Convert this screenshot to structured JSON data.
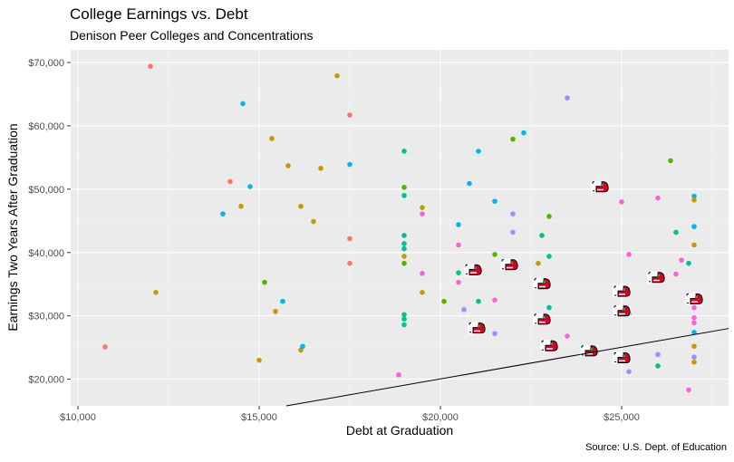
{
  "chart_data": {
    "type": "scatter",
    "title": "College Earnings vs. Debt",
    "subtitle": "Denison Peer Colleges and Concentrations",
    "caption": "Source: U.S. Dept. of Education",
    "xlabel": "Debt at Graduation",
    "ylabel": "Earnings Two Years After Graduation",
    "xlim": [
      9800,
      27950
    ],
    "ylim": [
      15800,
      72000
    ],
    "x_ticks": [
      10000,
      15000,
      20000,
      25000
    ],
    "x_tick_labels": [
      "$10,000",
      "$15,000",
      "$20,000",
      "$25,000"
    ],
    "y_ticks": [
      20000,
      30000,
      40000,
      50000,
      60000,
      70000
    ],
    "y_tick_labels": [
      "$20,000",
      "$30,000",
      "$40,000",
      "$50,000",
      "$60,000",
      "$70,000"
    ],
    "grid": true,
    "legend": "none",
    "reference_line": {
      "x1": 15750,
      "y1": 15800,
      "x2": 27950,
      "y2": 28000
    },
    "colors": {
      "panel": "#ebebeb",
      "grid_major": "#ffffff",
      "grid_minor": "#f4f4f4",
      "palette": [
        "#f8766d",
        "#c49a00",
        "#53b400",
        "#00c094",
        "#00b6eb",
        "#a58aff",
        "#fb61d7"
      ],
      "marker_red": "#d4002a"
    },
    "points": [
      {
        "x": 10750,
        "y": 25100,
        "c": 0
      },
      {
        "x": 12000,
        "y": 69400,
        "c": 0
      },
      {
        "x": 12150,
        "y": 33700,
        "c": 1
      },
      {
        "x": 14000,
        "y": 46100,
        "c": 4
      },
      {
        "x": 14200,
        "y": 51200,
        "c": 0
      },
      {
        "x": 14500,
        "y": 47300,
        "c": 1
      },
      {
        "x": 14550,
        "y": 63500,
        "c": 4
      },
      {
        "x": 14750,
        "y": 50400,
        "c": 4
      },
      {
        "x": 15000,
        "y": 23000,
        "c": 1
      },
      {
        "x": 15150,
        "y": 35300,
        "c": 2
      },
      {
        "x": 15350,
        "y": 58000,
        "c": 1
      },
      {
        "x": 15450,
        "y": 30700,
        "c": 1
      },
      {
        "x": 15650,
        "y": 32300,
        "c": 4
      },
      {
        "x": 15800,
        "y": 53700,
        "c": 1
      },
      {
        "x": 16150,
        "y": 24600,
        "c": 1
      },
      {
        "x": 16200,
        "y": 25200,
        "c": 4
      },
      {
        "x": 16150,
        "y": 47300,
        "c": 1
      },
      {
        "x": 16500,
        "y": 44900,
        "c": 1
      },
      {
        "x": 16700,
        "y": 53300,
        "c": 1
      },
      {
        "x": 17150,
        "y": 67900,
        "c": 1
      },
      {
        "x": 17500,
        "y": 61700,
        "c": 0
      },
      {
        "x": 17500,
        "y": 53900,
        "c": 4
      },
      {
        "x": 17500,
        "y": 42200,
        "c": 0
      },
      {
        "x": 17500,
        "y": 38300,
        "c": 0
      },
      {
        "x": 19000,
        "y": 56000,
        "c": 3
      },
      {
        "x": 19000,
        "y": 50300,
        "c": 2
      },
      {
        "x": 19000,
        "y": 49000,
        "c": 3
      },
      {
        "x": 19000,
        "y": 42700,
        "c": 3
      },
      {
        "x": 19000,
        "y": 41400,
        "c": 3
      },
      {
        "x": 19000,
        "y": 40600,
        "c": 3
      },
      {
        "x": 19000,
        "y": 39400,
        "c": 1
      },
      {
        "x": 19000,
        "y": 38300,
        "c": 2
      },
      {
        "x": 19000,
        "y": 30200,
        "c": 3
      },
      {
        "x": 19000,
        "y": 29500,
        "c": 3
      },
      {
        "x": 19000,
        "y": 28600,
        "c": 3
      },
      {
        "x": 18850,
        "y": 20700,
        "c": 6
      },
      {
        "x": 19500,
        "y": 47100,
        "c": 1
      },
      {
        "x": 19500,
        "y": 46100,
        "c": 6
      },
      {
        "x": 19500,
        "y": 36700,
        "c": 6
      },
      {
        "x": 19500,
        "y": 33700,
        "c": 1
      },
      {
        "x": 20100,
        "y": 32300,
        "c": 2
      },
      {
        "x": 20500,
        "y": 44400,
        "c": 4
      },
      {
        "x": 20500,
        "y": 41200,
        "c": 6
      },
      {
        "x": 20500,
        "y": 36800,
        "c": 3
      },
      {
        "x": 20500,
        "y": 35300,
        "c": 6
      },
      {
        "x": 20650,
        "y": 31000,
        "c": 5
      },
      {
        "x": 20800,
        "y": 50900,
        "c": 4
      },
      {
        "x": 21050,
        "y": 56000,
        "c": 4
      },
      {
        "x": 21050,
        "y": 32300,
        "c": 3
      },
      {
        "x": 21500,
        "y": 48100,
        "c": 4
      },
      {
        "x": 21500,
        "y": 39700,
        "c": 2
      },
      {
        "x": 21500,
        "y": 32500,
        "c": 6
      },
      {
        "x": 21500,
        "y": 27200,
        "c": 5
      },
      {
        "x": 22000,
        "y": 57900,
        "c": 2
      },
      {
        "x": 22000,
        "y": 46100,
        "c": 5
      },
      {
        "x": 22000,
        "y": 43200,
        "c": 5
      },
      {
        "x": 22300,
        "y": 58900,
        "c": 4
      },
      {
        "x": 22700,
        "y": 38300,
        "c": 1
      },
      {
        "x": 22800,
        "y": 42700,
        "c": 3
      },
      {
        "x": 23000,
        "y": 45700,
        "c": 2
      },
      {
        "x": 23000,
        "y": 39400,
        "c": 3
      },
      {
        "x": 23000,
        "y": 31300,
        "c": 3
      },
      {
        "x": 23500,
        "y": 64400,
        "c": 5
      },
      {
        "x": 23500,
        "y": 26800,
        "c": 6
      },
      {
        "x": 25000,
        "y": 48000,
        "c": 6
      },
      {
        "x": 25200,
        "y": 39700,
        "c": 6
      },
      {
        "x": 25200,
        "y": 30300,
        "c": 6
      },
      {
        "x": 25200,
        "y": 21200,
        "c": 5
      },
      {
        "x": 26000,
        "y": 48600,
        "c": 6
      },
      {
        "x": 26000,
        "y": 23900,
        "c": 5
      },
      {
        "x": 26000,
        "y": 22100,
        "c": 3
      },
      {
        "x": 26350,
        "y": 54500,
        "c": 2
      },
      {
        "x": 26500,
        "y": 43200,
        "c": 3
      },
      {
        "x": 26500,
        "y": 36600,
        "c": 6
      },
      {
        "x": 26650,
        "y": 38800,
        "c": 6
      },
      {
        "x": 26850,
        "y": 38300,
        "c": 3
      },
      {
        "x": 26850,
        "y": 18300,
        "c": 6
      },
      {
        "x": 27000,
        "y": 48900,
        "c": 4
      },
      {
        "x": 27000,
        "y": 48300,
        "c": 1
      },
      {
        "x": 27000,
        "y": 44100,
        "c": 4
      },
      {
        "x": 27000,
        "y": 41200,
        "c": 1
      },
      {
        "x": 27000,
        "y": 31300,
        "c": 6
      },
      {
        "x": 27000,
        "y": 29700,
        "c": 6
      },
      {
        "x": 27000,
        "y": 28900,
        "c": 6
      },
      {
        "x": 27000,
        "y": 27400,
        "c": 4
      },
      {
        "x": 27000,
        "y": 25200,
        "c": 1
      },
      {
        "x": 27000,
        "y": 23500,
        "c": 5
      },
      {
        "x": 27000,
        "y": 22700,
        "c": 1
      }
    ],
    "denison_points": [
      {
        "x": 24400,
        "y": 50300
      },
      {
        "x": 21900,
        "y": 38000
      },
      {
        "x": 20900,
        "y": 37200
      },
      {
        "x": 22800,
        "y": 35000
      },
      {
        "x": 25950,
        "y": 36000
      },
      {
        "x": 25000,
        "y": 33800
      },
      {
        "x": 27000,
        "y": 32600
      },
      {
        "x": 25000,
        "y": 30700
      },
      {
        "x": 22800,
        "y": 29400
      },
      {
        "x": 21000,
        "y": 28000
      },
      {
        "x": 23000,
        "y": 25200
      },
      {
        "x": 24100,
        "y": 24400
      },
      {
        "x": 25000,
        "y": 23300
      }
    ]
  }
}
